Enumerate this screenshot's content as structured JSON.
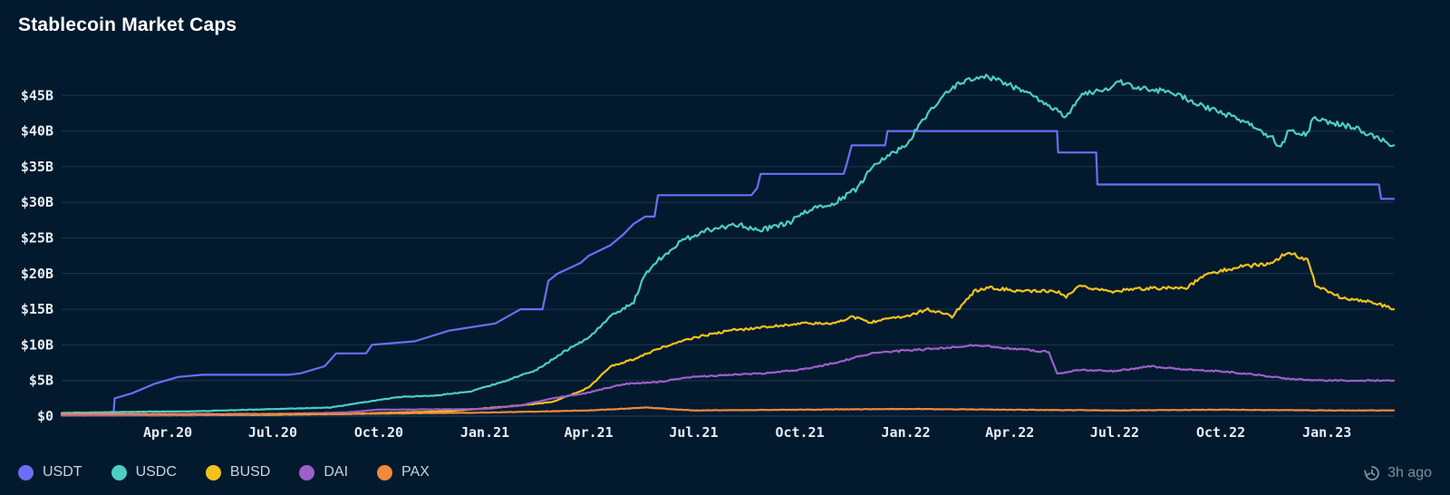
{
  "header": {
    "title": "Stablecoin Market Caps"
  },
  "footer": {
    "updated": "3h ago",
    "updated_icon": "clock-history-icon"
  },
  "colors": {
    "background": "#031a2e",
    "grid": "#1c3550",
    "USDT": "#6b6ff7",
    "USDC": "#4ecdc4",
    "BUSD": "#f4c21b",
    "DAI": "#9d5fc9",
    "PAX": "#f2883d"
  },
  "chart_data": {
    "type": "line",
    "title": "Stablecoin Market Caps",
    "x_unit": "month",
    "x_range": [
      "2019-12-31",
      "2023-02-28"
    ],
    "y_range": [
      0,
      50
    ],
    "y_unit": "$B",
    "y_ticks": [
      0,
      5,
      10,
      15,
      20,
      25,
      30,
      35,
      40,
      45
    ],
    "y_tick_labels": [
      "$0",
      "$5B",
      "$10B",
      "$15B",
      "$20B",
      "$25B",
      "$30B",
      "$35B",
      "$40B",
      "$45B"
    ],
    "x_ticks": [
      "2020-04",
      "2020-07",
      "2020-10",
      "2021-01",
      "2021-04",
      "2021-07",
      "2021-10",
      "2022-01",
      "2022-04",
      "2022-07",
      "2022-10",
      "2023-01"
    ],
    "x_tick_labels": [
      "Apr.20",
      "Jul.20",
      "Oct.20",
      "Jan.21",
      "Apr.21",
      "Jul.21",
      "Oct.21",
      "Jan.22",
      "Apr.22",
      "Jul.22",
      "Oct.22",
      "Jan.23"
    ],
    "grid": true,
    "legend": "bottom-left",
    "series": [
      {
        "name": "USDT",
        "step": true,
        "points": [
          [
            "2019-12-31",
            0.3
          ],
          [
            "2020-02-14",
            0.3
          ],
          [
            "2020-02-15",
            2.5
          ],
          [
            "2020-03-01",
            3.2
          ],
          [
            "2020-03-20",
            4.5
          ],
          [
            "2020-04-10",
            5.5
          ],
          [
            "2020-05-01",
            5.8
          ],
          [
            "2020-07-15",
            5.8
          ],
          [
            "2020-07-25",
            6.0
          ],
          [
            "2020-08-15",
            7.0
          ],
          [
            "2020-08-25",
            8.8
          ],
          [
            "2020-09-20",
            8.8
          ],
          [
            "2020-09-25",
            10.0
          ],
          [
            "2020-11-01",
            10.5
          ],
          [
            "2020-12-01",
            12.0
          ],
          [
            "2021-01-10",
            13.0
          ],
          [
            "2021-02-01",
            15.0
          ],
          [
            "2021-02-20",
            15.0
          ],
          [
            "2021-02-25",
            19.0
          ],
          [
            "2021-03-05",
            20.0
          ],
          [
            "2021-03-25",
            21.5
          ],
          [
            "2021-04-01",
            22.5
          ],
          [
            "2021-04-20",
            24.0
          ],
          [
            "2021-05-01",
            25.5
          ],
          [
            "2021-05-10",
            27.0
          ],
          [
            "2021-05-20",
            28.0
          ],
          [
            "2021-05-28",
            28.0
          ],
          [
            "2021-05-31",
            31.0
          ],
          [
            "2021-08-20",
            31.0
          ],
          [
            "2021-08-25",
            32.0
          ],
          [
            "2021-08-28",
            34.0
          ],
          [
            "2021-11-08",
            34.0
          ],
          [
            "2021-11-10",
            35.0
          ],
          [
            "2021-11-15",
            38.0
          ],
          [
            "2021-12-14",
            38.0
          ],
          [
            "2021-12-16",
            40.0
          ],
          [
            "2022-05-12",
            40.0
          ],
          [
            "2022-05-13",
            37.0
          ],
          [
            "2022-06-15",
            37.0
          ],
          [
            "2022-06-16",
            32.5
          ],
          [
            "2023-02-15",
            32.5
          ],
          [
            "2023-02-17",
            30.5
          ],
          [
            "2023-02-28",
            30.5
          ]
        ]
      },
      {
        "name": "USDC",
        "points": [
          [
            "2019-12-31",
            0.45
          ],
          [
            "2020-03-01",
            0.6
          ],
          [
            "2020-05-01",
            0.7
          ],
          [
            "2020-07-01",
            1.0
          ],
          [
            "2020-08-20",
            1.2
          ],
          [
            "2020-09-20",
            2.0
          ],
          [
            "2020-10-20",
            2.7
          ],
          [
            "2020-11-20",
            2.9
          ],
          [
            "2020-12-20",
            3.5
          ],
          [
            "2021-01-20",
            5.0
          ],
          [
            "2021-02-15",
            6.5
          ],
          [
            "2021-03-10",
            9.0
          ],
          [
            "2021-04-01",
            11.0
          ],
          [
            "2021-04-20",
            14.0
          ],
          [
            "2021-05-10",
            16.0
          ],
          [
            "2021-05-20",
            20.0
          ],
          [
            "2021-06-01",
            22.0
          ],
          [
            "2021-06-20",
            24.5
          ],
          [
            "2021-07-10",
            26.0
          ],
          [
            "2021-08-10",
            27.0
          ],
          [
            "2021-08-25",
            26.0
          ],
          [
            "2021-09-20",
            27.0
          ],
          [
            "2021-10-10",
            29.0
          ],
          [
            "2021-11-01",
            30.0
          ],
          [
            "2021-11-20",
            32.0
          ],
          [
            "2021-12-05",
            35.5
          ],
          [
            "2022-01-01",
            38.0
          ],
          [
            "2022-01-20",
            42.5
          ],
          [
            "2022-02-05",
            45.5
          ],
          [
            "2022-02-20",
            47.0
          ],
          [
            "2022-03-10",
            47.7
          ],
          [
            "2022-03-25",
            47.0
          ],
          [
            "2022-04-20",
            45.0
          ],
          [
            "2022-05-10",
            43.0
          ],
          [
            "2022-05-20",
            42.0
          ],
          [
            "2022-06-01",
            45.0
          ],
          [
            "2022-06-25",
            46.0
          ],
          [
            "2022-07-05",
            47.0
          ],
          [
            "2022-07-20",
            46.0
          ],
          [
            "2022-08-20",
            45.5
          ],
          [
            "2022-09-15",
            43.5
          ],
          [
            "2022-10-20",
            41.5
          ],
          [
            "2022-11-15",
            39.0
          ],
          [
            "2022-11-22",
            37.5
          ],
          [
            "2022-11-28",
            40.0
          ],
          [
            "2022-12-15",
            39.5
          ],
          [
            "2022-12-20",
            41.8
          ],
          [
            "2023-01-10",
            41.0
          ],
          [
            "2023-01-25",
            40.5
          ],
          [
            "2023-02-28",
            38.0
          ]
        ]
      },
      {
        "name": "BUSD",
        "points": [
          [
            "2019-12-31",
            0.1
          ],
          [
            "2020-06-01",
            0.15
          ],
          [
            "2020-09-01",
            0.3
          ],
          [
            "2020-12-01",
            0.7
          ],
          [
            "2021-02-01",
            1.5
          ],
          [
            "2021-03-01",
            2.0
          ],
          [
            "2021-04-01",
            4.0
          ],
          [
            "2021-04-20",
            7.0
          ],
          [
            "2021-05-10",
            8.0
          ],
          [
            "2021-06-01",
            9.5
          ],
          [
            "2021-07-01",
            11.0
          ],
          [
            "2021-08-01",
            12.0
          ],
          [
            "2021-09-01",
            12.5
          ],
          [
            "2021-10-01",
            13.0
          ],
          [
            "2021-11-01",
            13.0
          ],
          [
            "2021-11-15",
            14.0
          ],
          [
            "2021-12-01",
            13.2
          ],
          [
            "2022-01-01",
            14.0
          ],
          [
            "2022-01-20",
            15.0
          ],
          [
            "2022-02-10",
            14.0
          ],
          [
            "2022-03-01",
            17.5
          ],
          [
            "2022-03-15",
            18.0
          ],
          [
            "2022-04-15",
            17.5
          ],
          [
            "2022-05-12",
            17.5
          ],
          [
            "2022-05-20",
            16.7
          ],
          [
            "2022-06-01",
            18.2
          ],
          [
            "2022-07-01",
            17.5
          ],
          [
            "2022-08-01",
            18.0
          ],
          [
            "2022-09-01",
            18.0
          ],
          [
            "2022-09-20",
            20.0
          ],
          [
            "2022-10-20",
            21.0
          ],
          [
            "2022-11-15",
            21.5
          ],
          [
            "2022-11-28",
            23.0
          ],
          [
            "2022-12-15",
            22.0
          ],
          [
            "2022-12-22",
            18.5
          ],
          [
            "2023-01-15",
            16.5
          ],
          [
            "2023-02-10",
            16.0
          ],
          [
            "2023-02-28",
            15.0
          ]
        ]
      },
      {
        "name": "DAI",
        "points": [
          [
            "2019-12-31",
            0.1
          ],
          [
            "2020-06-01",
            0.2
          ],
          [
            "2020-09-01",
            0.5
          ],
          [
            "2020-10-01",
            0.9
          ],
          [
            "2021-01-01",
            1.0
          ],
          [
            "2021-02-01",
            1.5
          ],
          [
            "2021-03-01",
            2.5
          ],
          [
            "2021-04-01",
            3.3
          ],
          [
            "2021-05-01",
            4.5
          ],
          [
            "2021-06-01",
            4.8
          ],
          [
            "2021-07-01",
            5.5
          ],
          [
            "2021-08-01",
            5.8
          ],
          [
            "2021-09-01",
            6.0
          ],
          [
            "2021-10-01",
            6.5
          ],
          [
            "2021-11-01",
            7.5
          ],
          [
            "2021-12-01",
            8.8
          ],
          [
            "2022-01-01",
            9.2
          ],
          [
            "2022-02-01",
            9.5
          ],
          [
            "2022-03-01",
            10.0
          ],
          [
            "2022-04-01",
            9.5
          ],
          [
            "2022-05-05",
            9.0
          ],
          [
            "2022-05-12",
            6.0
          ],
          [
            "2022-06-01",
            6.5
          ],
          [
            "2022-07-01",
            6.3
          ],
          [
            "2022-08-01",
            7.0
          ],
          [
            "2022-09-01",
            6.5
          ],
          [
            "2022-10-01",
            6.3
          ],
          [
            "2022-11-01",
            5.8
          ],
          [
            "2022-12-01",
            5.2
          ],
          [
            "2023-01-01",
            5.0
          ],
          [
            "2023-02-28",
            5.0
          ]
        ]
      },
      {
        "name": "PAX",
        "points": [
          [
            "2019-12-31",
            0.3
          ],
          [
            "2020-09-01",
            0.3
          ],
          [
            "2021-01-01",
            0.5
          ],
          [
            "2021-04-01",
            0.8
          ],
          [
            "2021-05-20",
            1.2
          ],
          [
            "2021-07-01",
            0.8
          ],
          [
            "2021-10-01",
            0.9
          ],
          [
            "2022-01-01",
            1.0
          ],
          [
            "2022-04-01",
            0.9
          ],
          [
            "2022-07-01",
            0.8
          ],
          [
            "2022-10-01",
            0.9
          ],
          [
            "2023-01-01",
            0.8
          ],
          [
            "2023-02-28",
            0.8
          ]
        ]
      }
    ]
  }
}
